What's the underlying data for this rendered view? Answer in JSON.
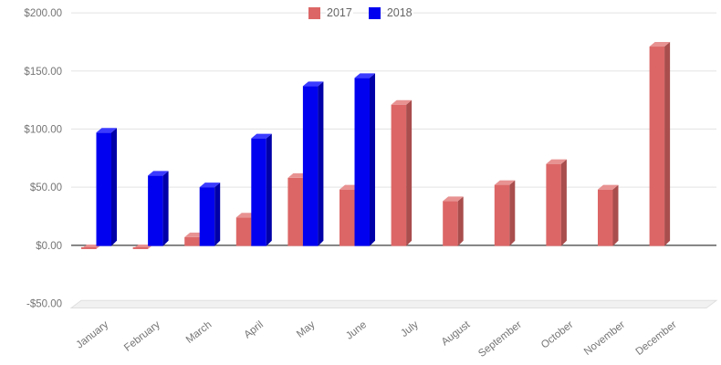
{
  "chart_data": {
    "type": "bar",
    "style": "3d-column",
    "title": "",
    "xlabel": "",
    "ylabel": "",
    "categories": [
      "January",
      "February",
      "March",
      "April",
      "May",
      "June",
      "July",
      "August",
      "September",
      "October",
      "November",
      "December"
    ],
    "series": [
      {
        "name": "2017",
        "color": "#DC6666",
        "side_color": "#A94D4D",
        "top_color": "#E89292",
        "values": [
          -2,
          -2,
          7,
          24,
          58,
          48,
          121,
          38,
          52,
          70,
          48,
          171
        ]
      },
      {
        "name": "2018",
        "color": "#0101F0",
        "side_color": "#0000A8",
        "top_color": "#3B3BFF",
        "values": [
          97,
          60,
          50,
          92,
          137,
          144,
          null,
          null,
          null,
          null,
          null,
          null
        ]
      }
    ],
    "y_ticks": [
      {
        "value": 200,
        "label": "$200.00"
      },
      {
        "value": 150,
        "label": "$150.00"
      },
      {
        "value": 100,
        "label": "$100.00"
      },
      {
        "value": 50,
        "label": "$50.00"
      },
      {
        "value": 0,
        "label": "$0.00"
      },
      {
        "value": -50,
        "label": "-$50.00"
      }
    ],
    "ylim": [
      -50,
      200
    ],
    "grid": true,
    "legend_position": "top-center",
    "value_format": "currency",
    "axis_label_color": "#757575",
    "gridline_color": "#E9E9E9",
    "zero_line_color": "#6B6B6B",
    "floor_fill_color": "#F1F1F1",
    "floor_edge_color": "#DFDFDF"
  }
}
